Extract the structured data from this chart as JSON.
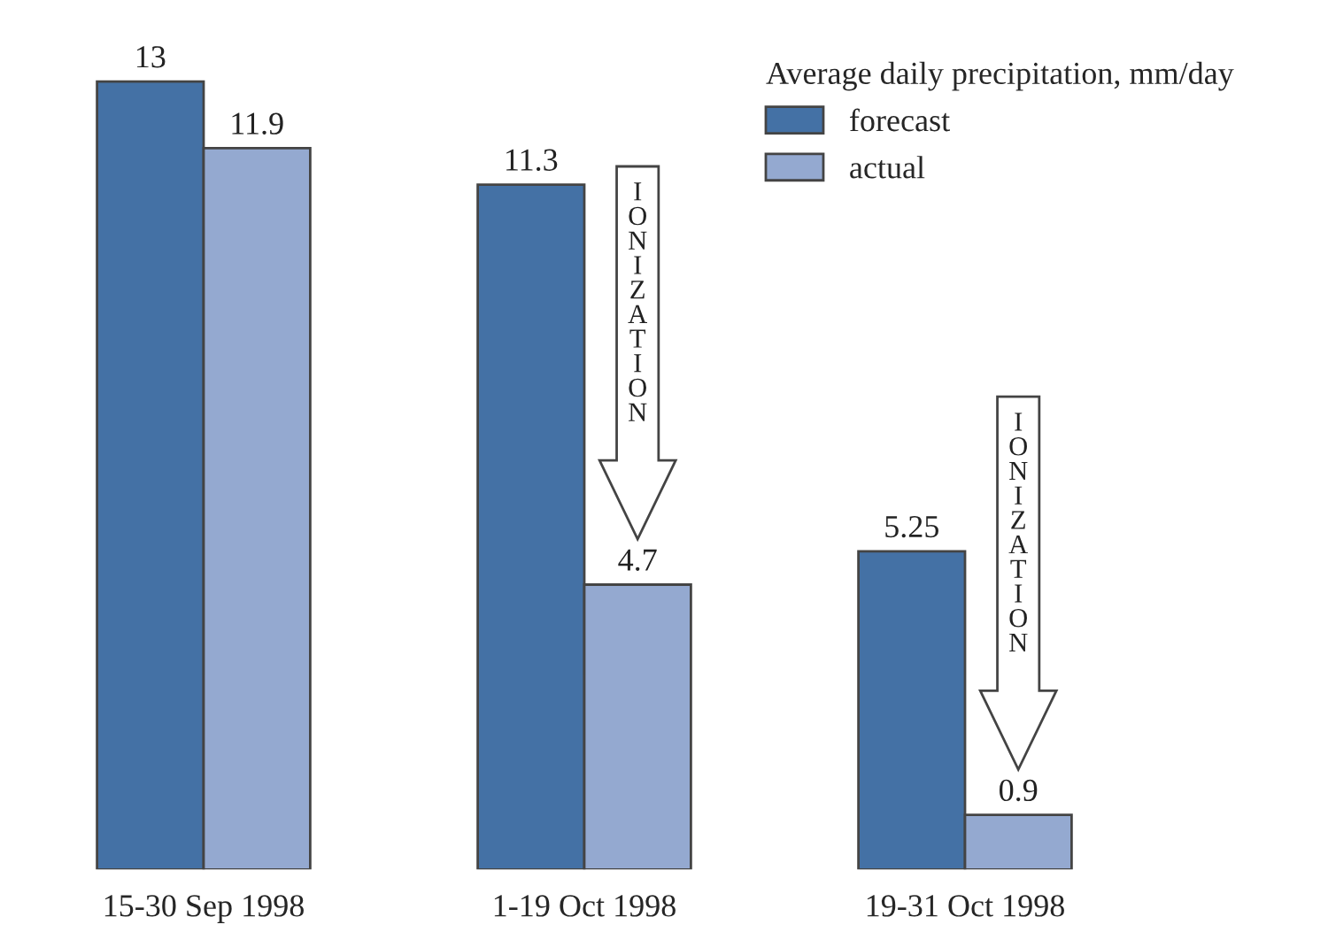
{
  "chart_data": {
    "type": "bar",
    "categories": [
      "15-30 Sep 1998",
      "1-19 Oct 1998",
      "19-31 Oct 1998"
    ],
    "legend_title": "Average daily precipitation, mm/day",
    "legend": "top right",
    "data_labels": true,
    "series": [
      {
        "name": "forecast",
        "color": "#4471a5",
        "values": [
          13,
          11.3,
          5.25
        ]
      },
      {
        "name": "actual",
        "color": "#94a9d0",
        "values": [
          11.9,
          4.7,
          0.9
        ]
      }
    ],
    "annotations": [
      "IONIZATION",
      "IONIZATION"
    ]
  }
}
